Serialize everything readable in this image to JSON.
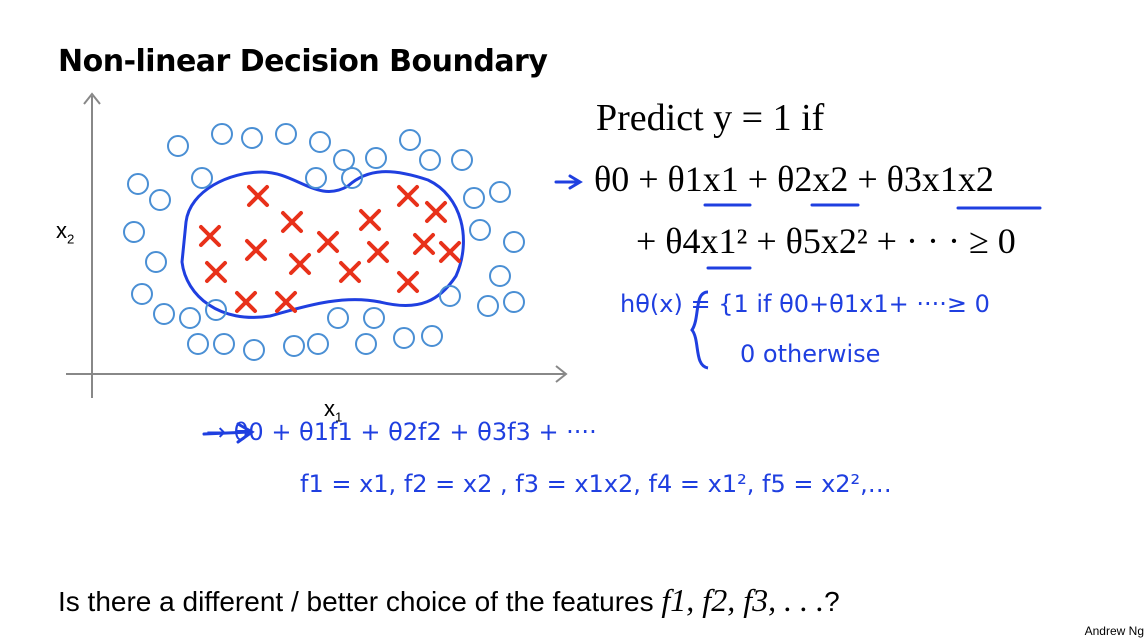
{
  "title": "Non-linear Decision Boundary",
  "plot": {
    "x_label": "x",
    "x_label_sub": "1",
    "y_label": "x",
    "y_label_sub": "2"
  },
  "predict": {
    "text": "Predict y = 1 if"
  },
  "equation": {
    "line1": "θ0 + θ1x1 + θ2x2 + θ3x1x2",
    "line2": "+ θ4x1² + θ5x2² + · · · ≥ 0"
  },
  "handwritten": {
    "h_def_line1": "hθ(x) = {1  if   θ0+θ1x1+ ····≥ 0",
    "h_def_line2": "0   otherwise",
    "features_sum": "→ θ0 + θ1f1 + θ2f2 + θ3f3 + ····",
    "features_def": "f1 = x1,  f2 = x2 , f3 = x1x2,  f4 = x1²,  f5 = x2²,…"
  },
  "bottom_question": {
    "text": "Is there a different / better choice of the features",
    "features": "f1, f2, f3, . . .",
    "end": "?"
  },
  "footer": "Andrew Ng",
  "colors": {
    "circle": "#4a8fd4",
    "cross": "#e8311a",
    "boundary": "#1f3fe0",
    "ink": "#1f3fe0"
  }
}
